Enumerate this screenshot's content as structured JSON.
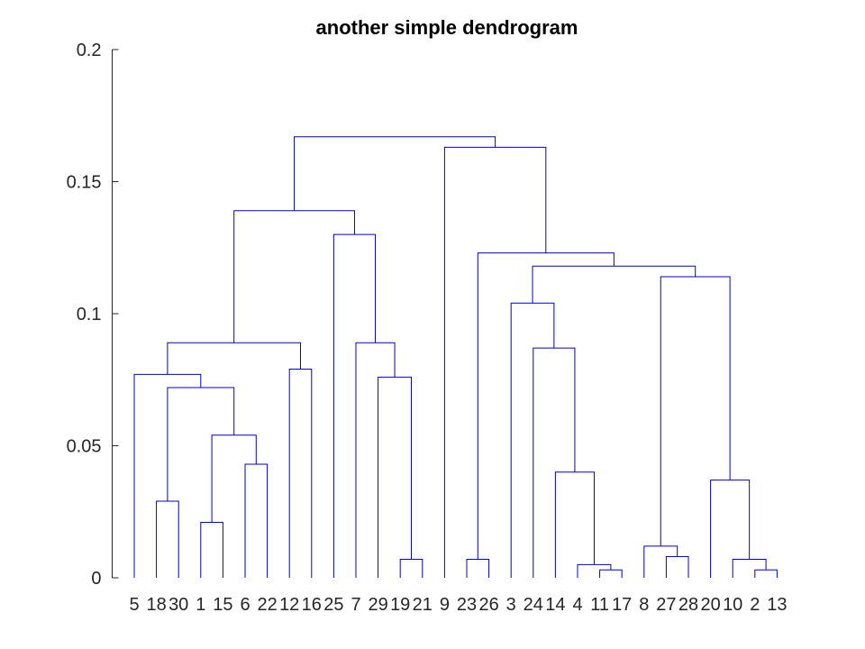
{
  "chart_data": {
    "type": "dendrogram",
    "title": "another simple dendrogram",
    "xlabel": "",
    "ylabel": "",
    "ylim": [
      0,
      0.2
    ],
    "y_ticks": [
      {
        "value": 0,
        "label": "0"
      },
      {
        "value": 0.05,
        "label": "0.05"
      },
      {
        "value": 0.1,
        "label": "0.1"
      },
      {
        "value": 0.15,
        "label": "0.15"
      },
      {
        "value": 0.2,
        "label": "0.2"
      }
    ],
    "grid": false,
    "color": "#0000cc",
    "leaves": [
      "5",
      "18",
      "30",
      "1",
      "15",
      "6",
      "22",
      "12",
      "16",
      "25",
      "7",
      "29",
      "19",
      "21",
      "9",
      "23",
      "26",
      "3",
      "24",
      "14",
      "4",
      "11",
      "17",
      "8",
      "27",
      "28",
      "20",
      "10",
      "2",
      "13"
    ],
    "links": [
      {
        "left": "L:1",
        "right": "L:2",
        "height": 0.029,
        "id": "a"
      },
      {
        "left": "L:3",
        "right": "L:4",
        "height": 0.021,
        "id": "b"
      },
      {
        "left": "L:5",
        "right": "L:6",
        "height": 0.043,
        "id": "c"
      },
      {
        "left": "N:b",
        "right": "N:c",
        "height": 0.054,
        "id": "d"
      },
      {
        "left": "N:a",
        "right": "N:d",
        "height": 0.072,
        "id": "e"
      },
      {
        "left": "L:0",
        "right": "N:e",
        "height": 0.077,
        "id": "f"
      },
      {
        "left": "L:7",
        "right": "L:8",
        "height": 0.079,
        "id": "g"
      },
      {
        "left": "N:f",
        "right": "N:g",
        "height": 0.089,
        "id": "h"
      },
      {
        "left": "L:12",
        "right": "L:13",
        "height": 0.007,
        "id": "i"
      },
      {
        "left": "L:11",
        "right": "N:i",
        "height": 0.076,
        "id": "j"
      },
      {
        "left": "L:10",
        "right": "N:j",
        "height": 0.089,
        "id": "k"
      },
      {
        "left": "L:9",
        "right": "N:k",
        "height": 0.13,
        "id": "l"
      },
      {
        "left": "N:h",
        "right": "N:l",
        "height": 0.139,
        "id": "m"
      },
      {
        "left": "L:15",
        "right": "L:16",
        "height": 0.007,
        "id": "n"
      },
      {
        "left": "L:21",
        "right": "L:22",
        "height": 0.003,
        "id": "o"
      },
      {
        "left": "L:20",
        "right": "N:o",
        "height": 0.005,
        "id": "p"
      },
      {
        "left": "L:19",
        "right": "N:p",
        "height": 0.04,
        "id": "q"
      },
      {
        "left": "L:18",
        "right": "N:q",
        "height": 0.087,
        "id": "r"
      },
      {
        "left": "L:17",
        "right": "N:r",
        "height": 0.104,
        "id": "s"
      },
      {
        "left": "L:24",
        "right": "L:25",
        "height": 0.008,
        "id": "t"
      },
      {
        "left": "L:23",
        "right": "N:t",
        "height": 0.012,
        "id": "u"
      },
      {
        "left": "L:28",
        "right": "L:29",
        "height": 0.003,
        "id": "v"
      },
      {
        "left": "L:27",
        "right": "N:v",
        "height": 0.007,
        "id": "w"
      },
      {
        "left": "L:26",
        "right": "N:w",
        "height": 0.037,
        "id": "x"
      },
      {
        "left": "N:u",
        "right": "N:x",
        "height": 0.114,
        "id": "y"
      },
      {
        "left": "N:s",
        "right": "N:y",
        "height": 0.118,
        "id": "z"
      },
      {
        "left": "N:n",
        "right": "N:z",
        "height": 0.123,
        "id": "aa"
      },
      {
        "left": "L:14",
        "right": "N:aa",
        "height": 0.163,
        "id": "bb"
      },
      {
        "left": "N:m",
        "right": "N:bb",
        "height": 0.167,
        "id": "cc"
      }
    ]
  }
}
